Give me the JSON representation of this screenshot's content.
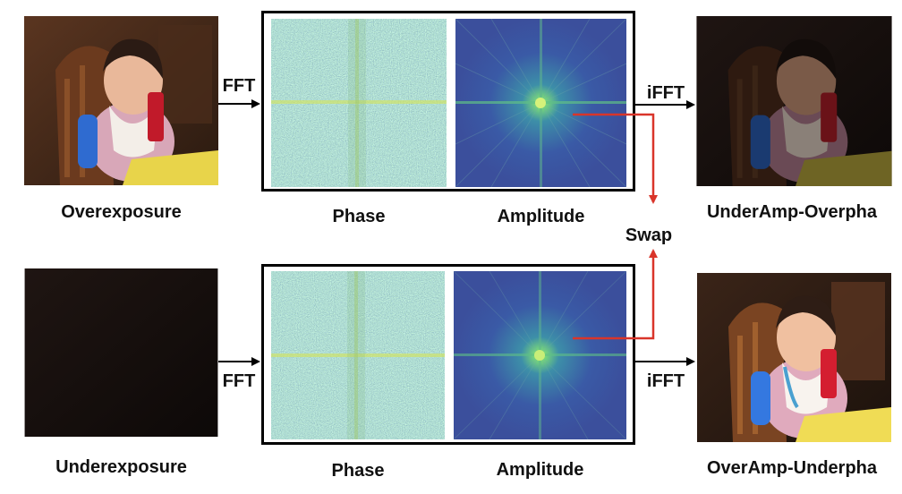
{
  "rows": [
    {
      "input_label": "Overexposure",
      "fft_label": "FFT",
      "phase_label": "Phase",
      "amplitude_label": "Amplitude",
      "ifft_label": "iFFT",
      "output_label": "UnderAmp-Overpha"
    },
    {
      "input_label": "Underexposure",
      "fft_label": "FFT",
      "phase_label": "Phase",
      "amplitude_label": "Amplitude",
      "ifft_label": "iFFT",
      "output_label": "OverAmp-Underpha"
    }
  ],
  "swap_label": "Swap",
  "colors": {
    "swap_arrow": "#d9352a",
    "flow_arrow": "#000000",
    "phase_base": "#6a9a6e",
    "amplitude_base": "#3f54a0",
    "amplitude_center": "#8fe06a"
  }
}
